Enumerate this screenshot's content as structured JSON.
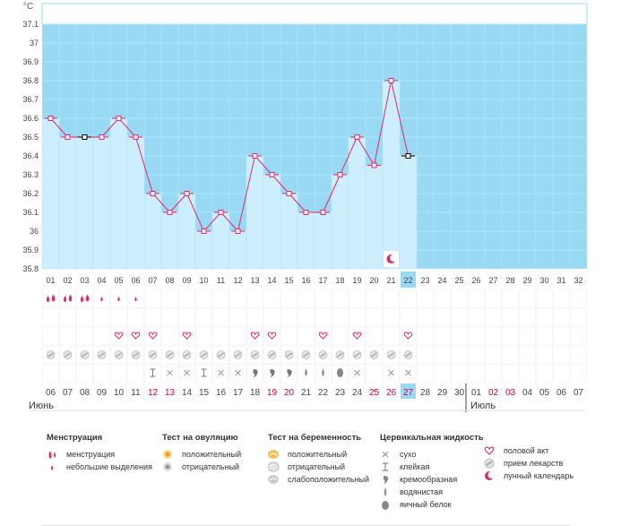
{
  "chart_data": {
    "type": "line",
    "ylabel": "°C",
    "ylim": [
      35.8,
      37.1
    ],
    "yticks": [
      "37.1",
      "37",
      "36.9",
      "36.8",
      "36.7",
      "36.6",
      "36.5",
      "36.4",
      "36.3",
      "36.2",
      "36.1",
      "36",
      "35.9",
      "35.8"
    ],
    "cycle_days": [
      "01",
      "02",
      "03",
      "04",
      "05",
      "06",
      "07",
      "08",
      "09",
      "10",
      "11",
      "12",
      "13",
      "14",
      "15",
      "16",
      "17",
      "18",
      "19",
      "20",
      "21",
      "22",
      "23",
      "24",
      "25",
      "26",
      "27",
      "28",
      "29",
      "30",
      "31",
      "32"
    ],
    "temperatures": [
      36.6,
      36.5,
      36.5,
      36.5,
      36.6,
      36.5,
      36.2,
      36.1,
      36.2,
      36.0,
      36.1,
      36.0,
      36.4,
      36.3,
      36.2,
      36.1,
      36.1,
      36.3,
      36.5,
      36.35,
      36.8,
      36.4
    ],
    "black_markers": [
      3,
      22
    ],
    "current_day": 22,
    "dates": [
      "06",
      "07",
      "08",
      "09",
      "10",
      "11",
      "12",
      "13",
      "14",
      "15",
      "16",
      "17",
      "18",
      "19",
      "20",
      "21",
      "22",
      "23",
      "24",
      "25",
      "26",
      "27",
      "28",
      "29",
      "30",
      "01",
      "02",
      "03",
      "04",
      "05",
      "06",
      "07"
    ],
    "weekend_indices": [
      6,
      7,
      13,
      14,
      20,
      21,
      26,
      27
    ],
    "month_labels": [
      "Июнь",
      "Июль"
    ],
    "menstruation": {
      "large": [
        1,
        2,
        3
      ],
      "small": [
        4,
        5,
        6
      ]
    },
    "sex_days": [
      5,
      6,
      7,
      9,
      13,
      14,
      17,
      19,
      22
    ],
    "medication_days": [
      1,
      2,
      3,
      4,
      5,
      6,
      7,
      8,
      9,
      10,
      11,
      12,
      13,
      14,
      15,
      16,
      17,
      18,
      19,
      20,
      21,
      22
    ],
    "cervical": [
      null,
      null,
      null,
      null,
      null,
      null,
      "sticky",
      "dry",
      "dry",
      "sticky",
      "dry",
      "dry",
      "creamy",
      "creamy",
      "creamy",
      "watery",
      "watery",
      "eggwhite",
      "dry",
      null,
      "dry",
      "dry"
    ],
    "moon_day": 21
  },
  "colors": {
    "sky": "#9ad9f3",
    "bar": "#cdeefc",
    "line": "#e0296b",
    "weekend": "#d1003c"
  },
  "legend": {
    "menstruation": {
      "title": "Менструация",
      "items": [
        "менструация",
        "небольшие выделения"
      ]
    },
    "ovulation": {
      "title": "Тест на овуляцию",
      "items": [
        "положительный",
        "отрицательный"
      ]
    },
    "pregnancy": {
      "title": "Тест на беременность",
      "items": [
        "положительный",
        "отрицательный",
        "слабоположительный"
      ]
    },
    "cervical": {
      "title": "Цервикальная жидкость",
      "items": [
        "сухо",
        "клейкая",
        "кремообразная",
        "водянистая",
        "яичный белок"
      ]
    },
    "other": {
      "items": [
        "половой акт",
        "прием лекарств",
        "лунный календарь"
      ]
    }
  }
}
